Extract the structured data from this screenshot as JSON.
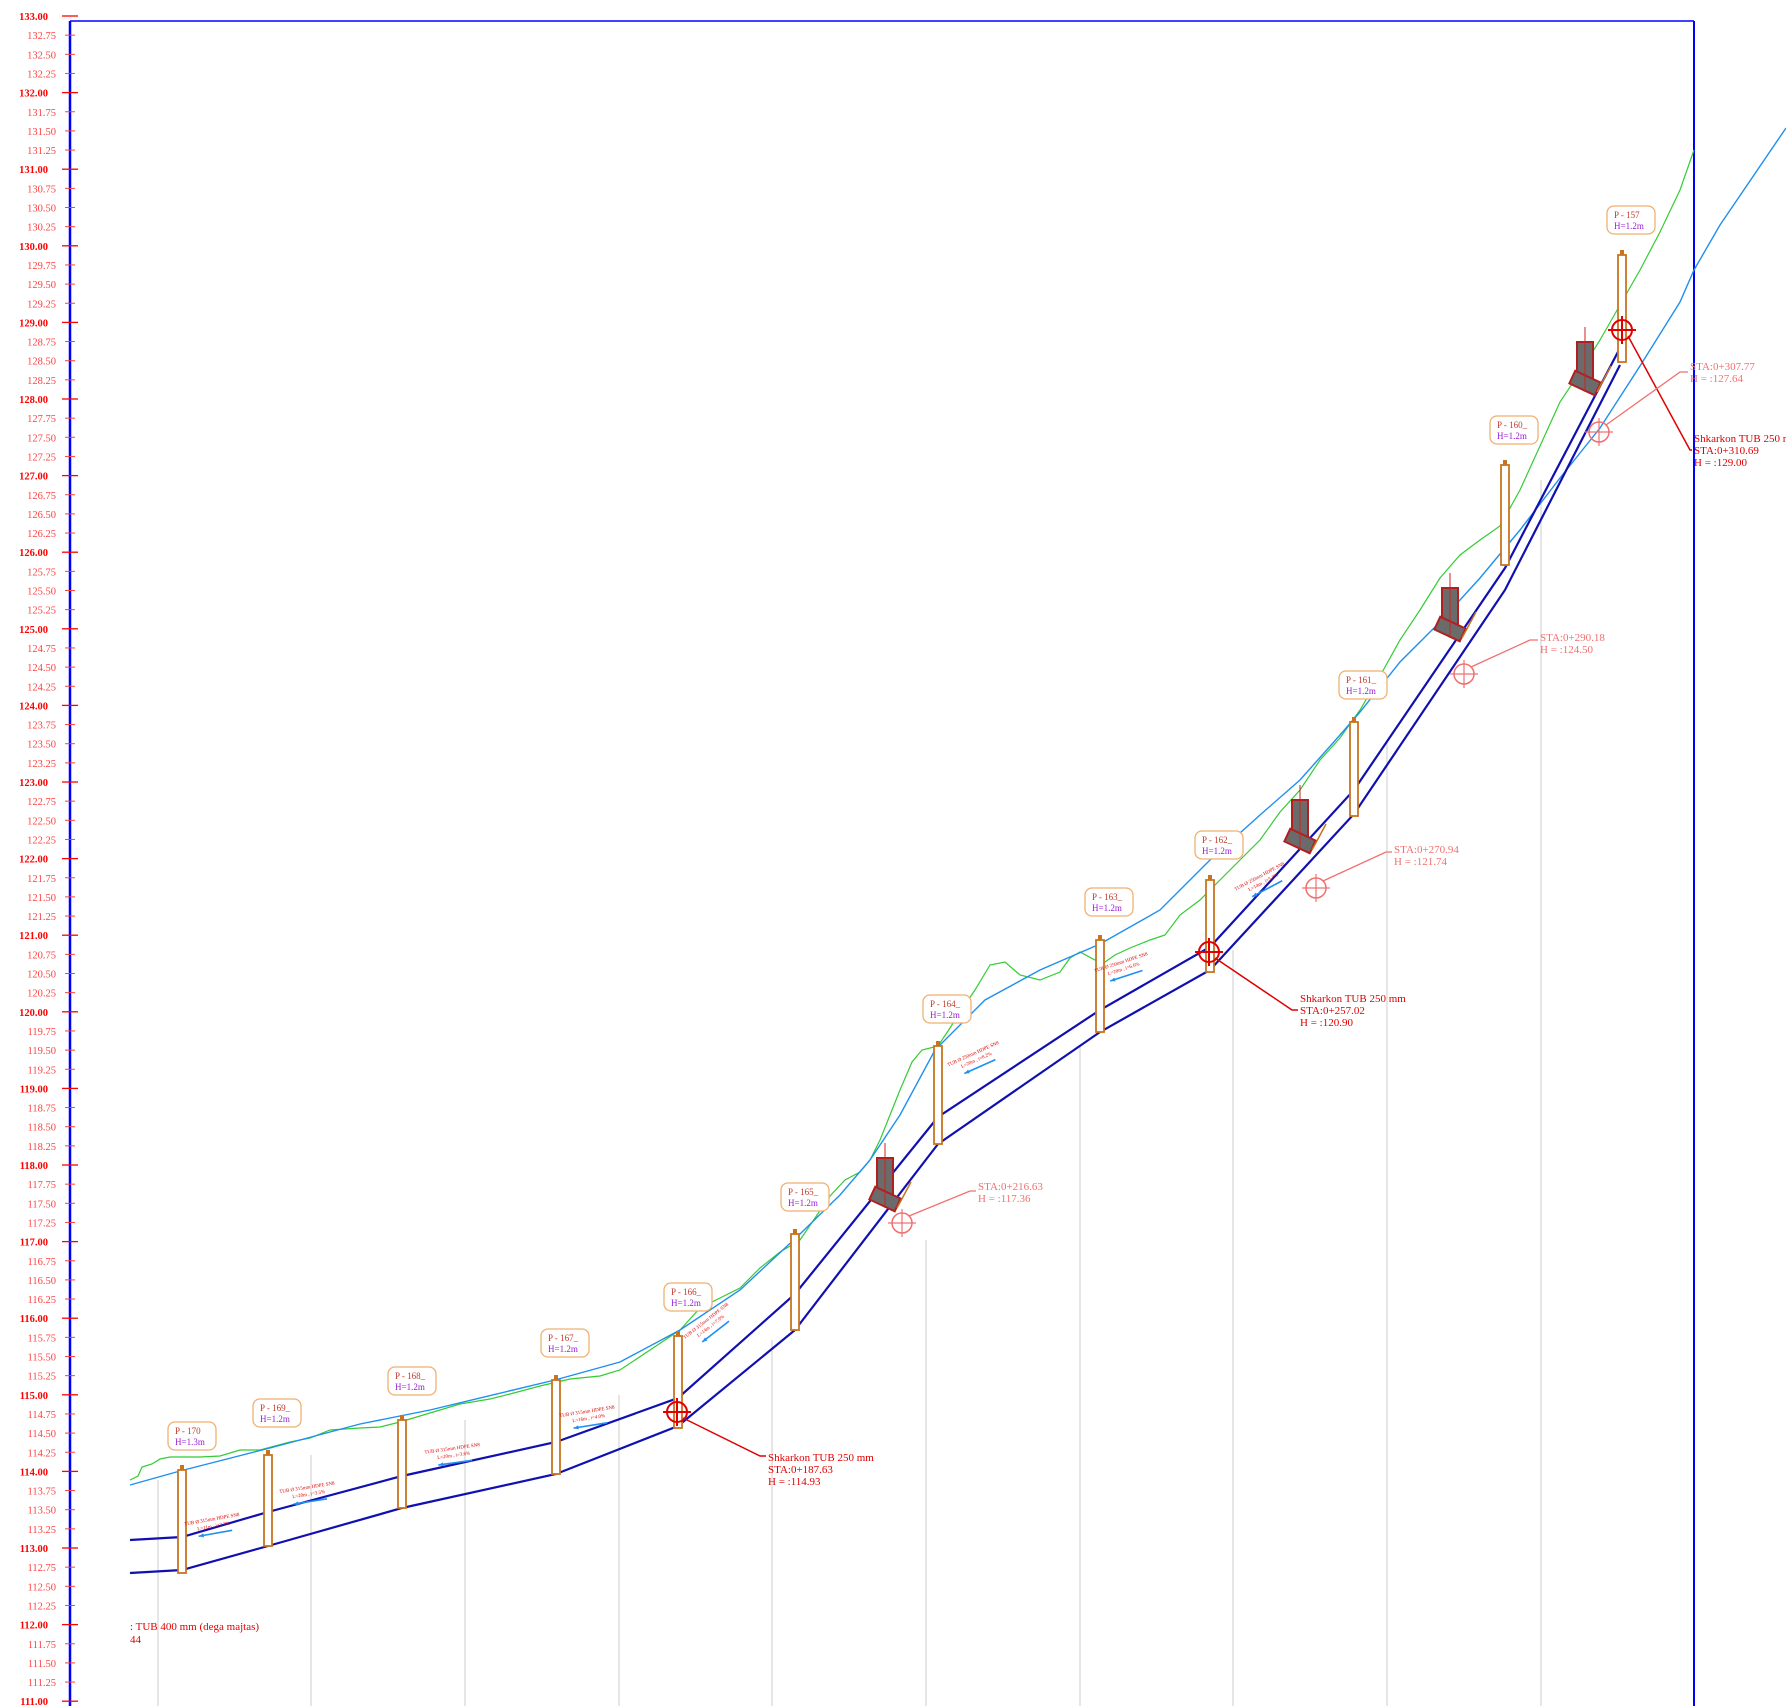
{
  "drawing": {
    "type": "longitudinal-profile",
    "colors": {
      "frame": "#0000ff",
      "ground_line": "#33cc33",
      "design_line": "#1f8ff0",
      "pipe": "#1010b0",
      "manhole": "#c8741f",
      "label_box": "#f0b070",
      "discharge": "#e00000",
      "station": "#f07070",
      "grid": "#cccccc"
    },
    "elevation_axis": {
      "min": 111.0,
      "max": 133.0,
      "major_labels": [
        "111.00",
        "112.00",
        "113.00",
        "114.00",
        "115.00",
        "116.00",
        "117.00",
        "118.00",
        "119.00",
        "120.00",
        "121.00",
        "122.00",
        "123.00",
        "124.00",
        "125.00",
        "126.00",
        "127.00",
        "128.00",
        "129.00",
        "130.00",
        "131.00",
        "132.00",
        "133.00"
      ],
      "minor_labels": [
        "111.25",
        "111.50",
        "111.75",
        "112.25",
        "112.50",
        "112.75",
        "113.25",
        "113.50",
        "113.75",
        "114.25",
        "114.50",
        "114.75",
        "115.25",
        "115.50",
        "115.75",
        "116.25",
        "116.50",
        "116.75",
        "117.25",
        "117.50",
        "117.75",
        "118.25",
        "118.50",
        "118.75",
        "119.25",
        "119.50",
        "119.75",
        "120.25",
        "120.50",
        "120.75",
        "121.25",
        "121.50",
        "121.75",
        "122.25",
        "122.50",
        "122.75",
        "123.25",
        "123.50",
        "123.75",
        "124.25",
        "124.50",
        "124.75",
        "125.25",
        "125.50",
        "125.75",
        "126.25",
        "126.50",
        "126.75",
        "127.25",
        "127.50",
        "127.75",
        "128.25",
        "128.50",
        "128.75",
        "129.25",
        "129.50",
        "129.75",
        "130.25",
        "130.50",
        "130.75",
        "131.25",
        "131.50",
        "131.75",
        "132.25",
        "132.50",
        "132.75"
      ]
    },
    "manholes": [
      {
        "label": "P - 170",
        "height": "H=1.3m",
        "ground": 114.0,
        "invert": 112.7
      },
      {
        "label": "P - 169_",
        "height": "H=1.2m",
        "ground": 114.3,
        "invert": 113.1
      },
      {
        "label": "P - 168_",
        "height": "H=1.2m",
        "ground": 114.7,
        "invert": 113.5
      },
      {
        "label": "P - 167_",
        "height": "H=1.2m",
        "ground": 115.2,
        "invert": 114.0
      },
      {
        "label": "P - 166_",
        "height": "H=1.2m",
        "ground": 115.8,
        "invert": 114.6
      },
      {
        "label": "P - 165_",
        "height": "H=1.2m",
        "ground": 117.2,
        "invert": 116.0
      },
      {
        "label": "P - 164_",
        "height": "H=1.2m",
        "ground": 119.6,
        "invert": 118.4
      },
      {
        "label": "P - 163_",
        "height": "H=1.2m",
        "ground": 121.0,
        "invert": 119.8
      },
      {
        "label": "P - 162_",
        "height": "H=1.2m",
        "ground": 121.8,
        "invert": 120.6
      },
      {
        "label": "P - 161_",
        "height": "H=1.2m",
        "ground": 123.9,
        "invert": 122.6
      },
      {
        "label": "P - 160_",
        "height": "H=1.2m",
        "ground": 127.1,
        "invert": 125.9
      },
      {
        "label": "P - 157",
        "height": "H=1.2m",
        "ground": 130.0,
        "invert": 128.5
      }
    ],
    "discharges": [
      {
        "title": "Shkarkon TUB 250 mm",
        "sta": "STA:0+187.63",
        "h": "H = :114.93"
      },
      {
        "title": "Shkarkon TUB 250 mm",
        "sta": "STA:0+257.02",
        "h": "H = :120.90"
      },
      {
        "title": "Shkarkon TUB 250 m",
        "sta": "STA:0+310.69",
        "h": "H = :129.00"
      }
    ],
    "stations": [
      {
        "sta": "STA:0+216.63",
        "h": "H = :117.36"
      },
      {
        "sta": "STA:0+270.94",
        "h": "H = :121.74"
      },
      {
        "sta": "STA:0+290.18",
        "h": "H = :124.50"
      },
      {
        "sta": "STA:0+307.77",
        "h": "H = :127.64"
      }
    ],
    "pipe_labels": [
      {
        "line1": "TUB Ø 315mm HDPE SN8",
        "line2": "L=11m , i=3.7%"
      },
      {
        "line1": "TUB Ø 315mm HDPE SN8",
        "line2": "L=20m , i=3.5%"
      },
      {
        "line1": "TUB Ø 315mm HDPE SN8",
        "line2": "L=20m , i=3.6%"
      },
      {
        "line1": "TUB Ø 315mm HDPE SN8",
        "line2": "L=16m , i=4.0%"
      },
      {
        "line1": "TUB Ø 315mm HDPE SN8",
        "line2": "L=14m , i=7.9%"
      },
      {
        "line1": "TUB Ø 250mm HDPE SN8",
        "line2": "L=20m , i=8.2%"
      },
      {
        "line1": "TUB Ø 250mm HDPE SN8",
        "line2": "L=20m , i=6.6%"
      },
      {
        "line1": "TUB Ø 250mm HDPE SN8",
        "line2": "L=14m , i=5.8%"
      }
    ],
    "bottom_left_note": {
      "line1": ": TUB 400 mm (dega majtas)",
      "line2": "44"
    }
  }
}
